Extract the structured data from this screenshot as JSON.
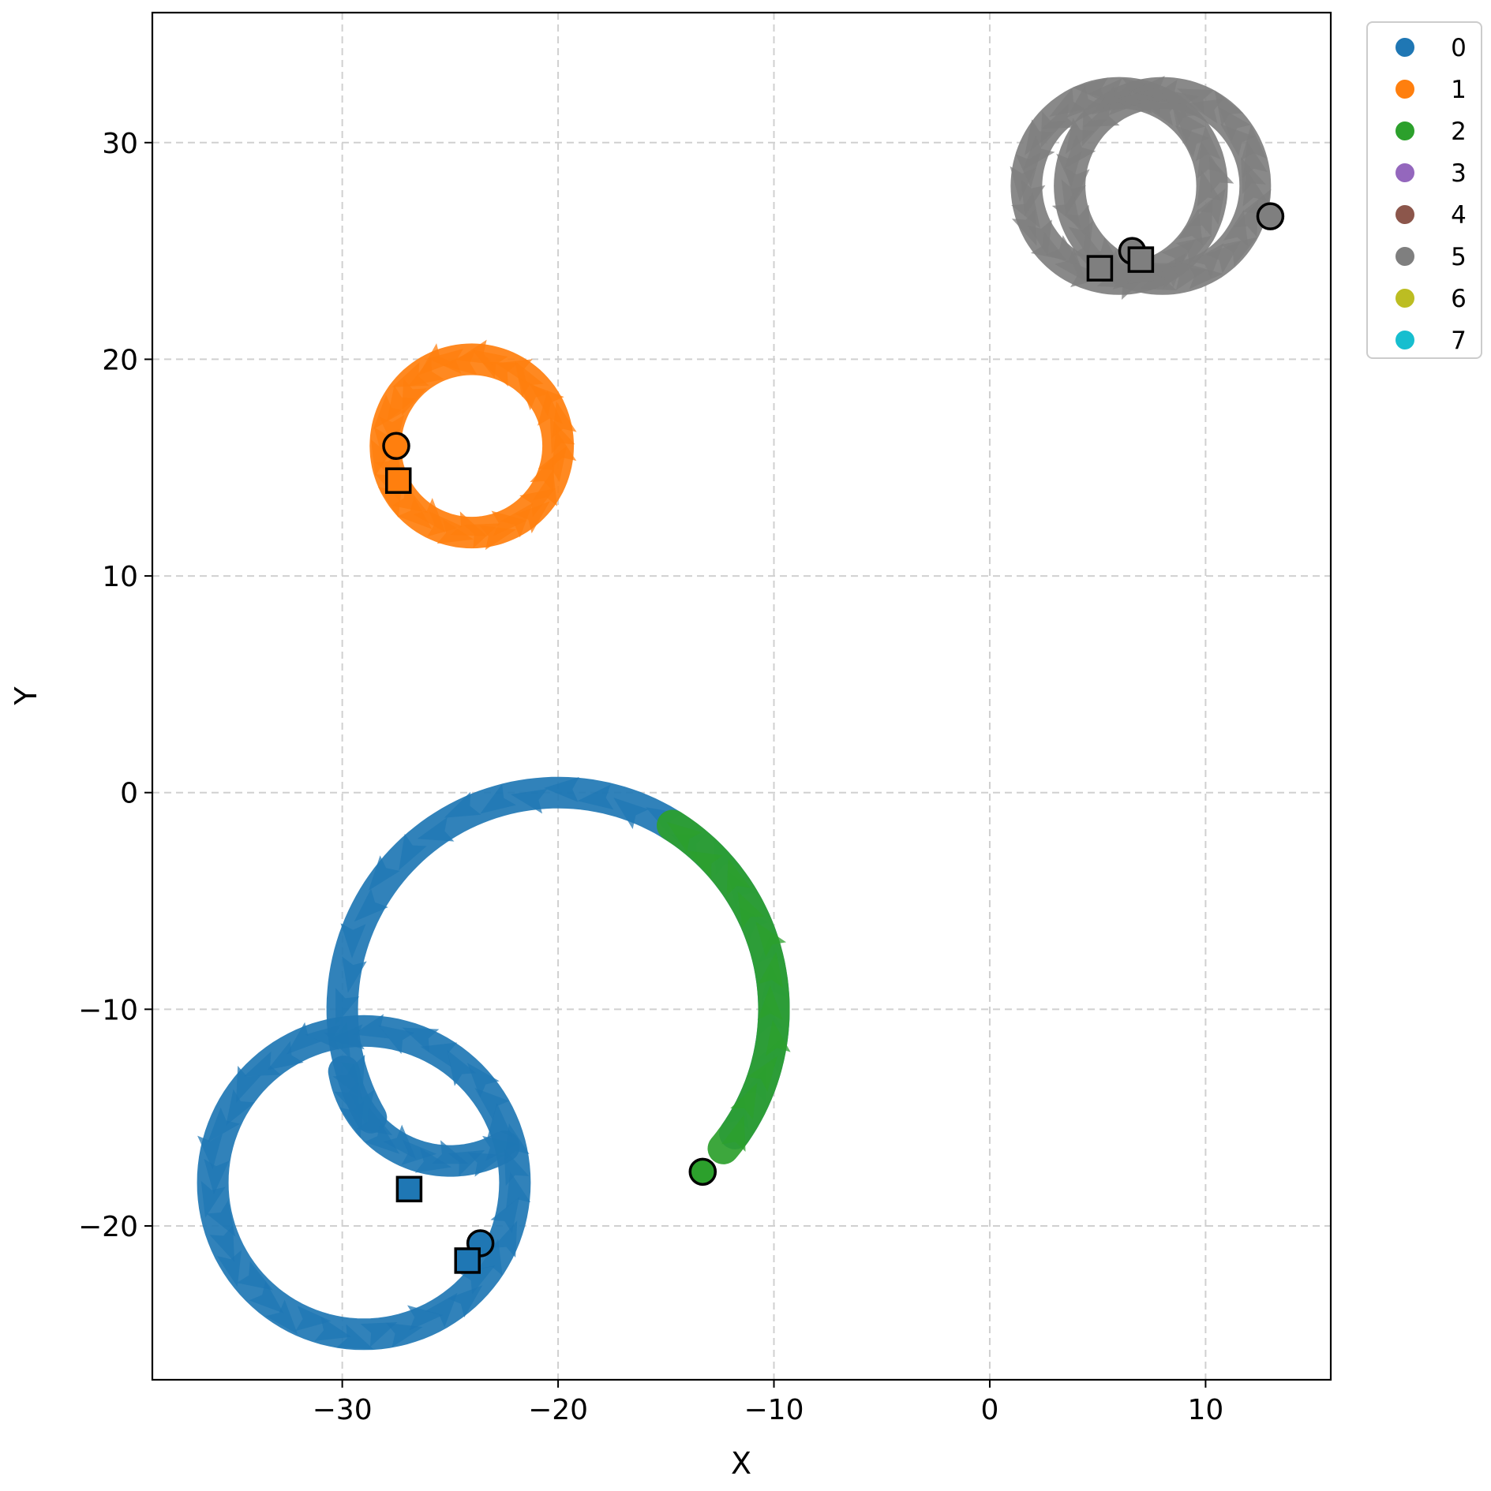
{
  "chart_data": {
    "type": "scatter",
    "title": "",
    "xlabel": "X",
    "ylabel": "Y",
    "xlim": [
      -38.8,
      15.8
    ],
    "ylim": [
      -27.1,
      36.0
    ],
    "xticks": [
      -30,
      -20,
      -10,
      0,
      10
    ],
    "yticks": [
      -20,
      -10,
      0,
      10,
      20,
      30
    ],
    "xtick_labels": [
      "−30",
      "−20",
      "−10",
      "0",
      "10"
    ],
    "ytick_labels": [
      "−20",
      "−10",
      "0",
      "10",
      "20",
      "30"
    ],
    "grid": true,
    "legend": {
      "placement": "outside-top-right",
      "entries": [
        {
          "label": "0",
          "color": "#1f77b4"
        },
        {
          "label": "1",
          "color": "#ff7f0e"
        },
        {
          "label": "2",
          "color": "#2ca02c"
        },
        {
          "label": "3",
          "color": "#9467bd"
        },
        {
          "label": "4",
          "color": "#8c564b"
        },
        {
          "label": "5",
          "color": "#7f7f7f"
        },
        {
          "label": "6",
          "color": "#bcbd22"
        },
        {
          "label": "7",
          "color": "#17becf"
        }
      ]
    },
    "trajectories": [
      {
        "agent": "0",
        "color": "#1f77b4",
        "shape": "arc",
        "center": [
          -20.0,
          -10.0
        ],
        "radius": 10.0,
        "from_deg": -35,
        "to_deg": 210
      },
      {
        "agent": "0",
        "color": "#1f77b4",
        "shape": "arc",
        "center": [
          -25.0,
          -12.0
        ],
        "radius": 5.0,
        "from_deg": -170,
        "to_deg": -60
      },
      {
        "agent": "0",
        "color": "#1f77b4",
        "shape": "circle",
        "center": [
          -29.0,
          -18.0
        ],
        "radius": 7.0
      },
      {
        "agent": "1",
        "color": "#ff7f0e",
        "shape": "circle",
        "center": [
          -24.0,
          16.0
        ],
        "radius": 4.0
      },
      {
        "agent": "2",
        "color": "#2ca02c",
        "shape": "arc",
        "center": [
          -20.0,
          -10.0
        ],
        "radius": 10.0,
        "from_deg": -40,
        "to_deg": 58
      },
      {
        "agent": "5",
        "color": "#7f7f7f",
        "shape": "circle",
        "center": [
          6.0,
          28.0
        ],
        "radius": 4.3
      },
      {
        "agent": "5",
        "color": "#7f7f7f",
        "shape": "circle",
        "center": [
          8.0,
          28.0
        ],
        "radius": 4.3
      }
    ],
    "start_markers": [
      {
        "agent": "0",
        "x": -23.6,
        "y": -20.8,
        "color": "#1f77b4"
      },
      {
        "agent": "1",
        "x": -27.5,
        "y": 16.0,
        "color": "#ff7f0e"
      },
      {
        "agent": "2",
        "x": -13.3,
        "y": -17.5,
        "color": "#2ca02c"
      },
      {
        "agent": "5",
        "x": 6.6,
        "y": 25.0,
        "color": "#7f7f7f"
      },
      {
        "agent": "5",
        "x": 13.0,
        "y": 26.6,
        "color": "#7f7f7f"
      }
    ],
    "end_markers": [
      {
        "agent": "0",
        "x": -26.9,
        "y": -18.3,
        "color": "#1f77b4"
      },
      {
        "agent": "0",
        "x": -24.2,
        "y": -21.6,
        "color": "#1f77b4"
      },
      {
        "agent": "1",
        "x": -27.4,
        "y": 14.4,
        "color": "#ff7f0e"
      },
      {
        "agent": "5",
        "x": 5.1,
        "y": 24.2,
        "color": "#7f7f7f"
      },
      {
        "agent": "5",
        "x": 7.0,
        "y": 24.6,
        "color": "#7f7f7f"
      }
    ]
  }
}
